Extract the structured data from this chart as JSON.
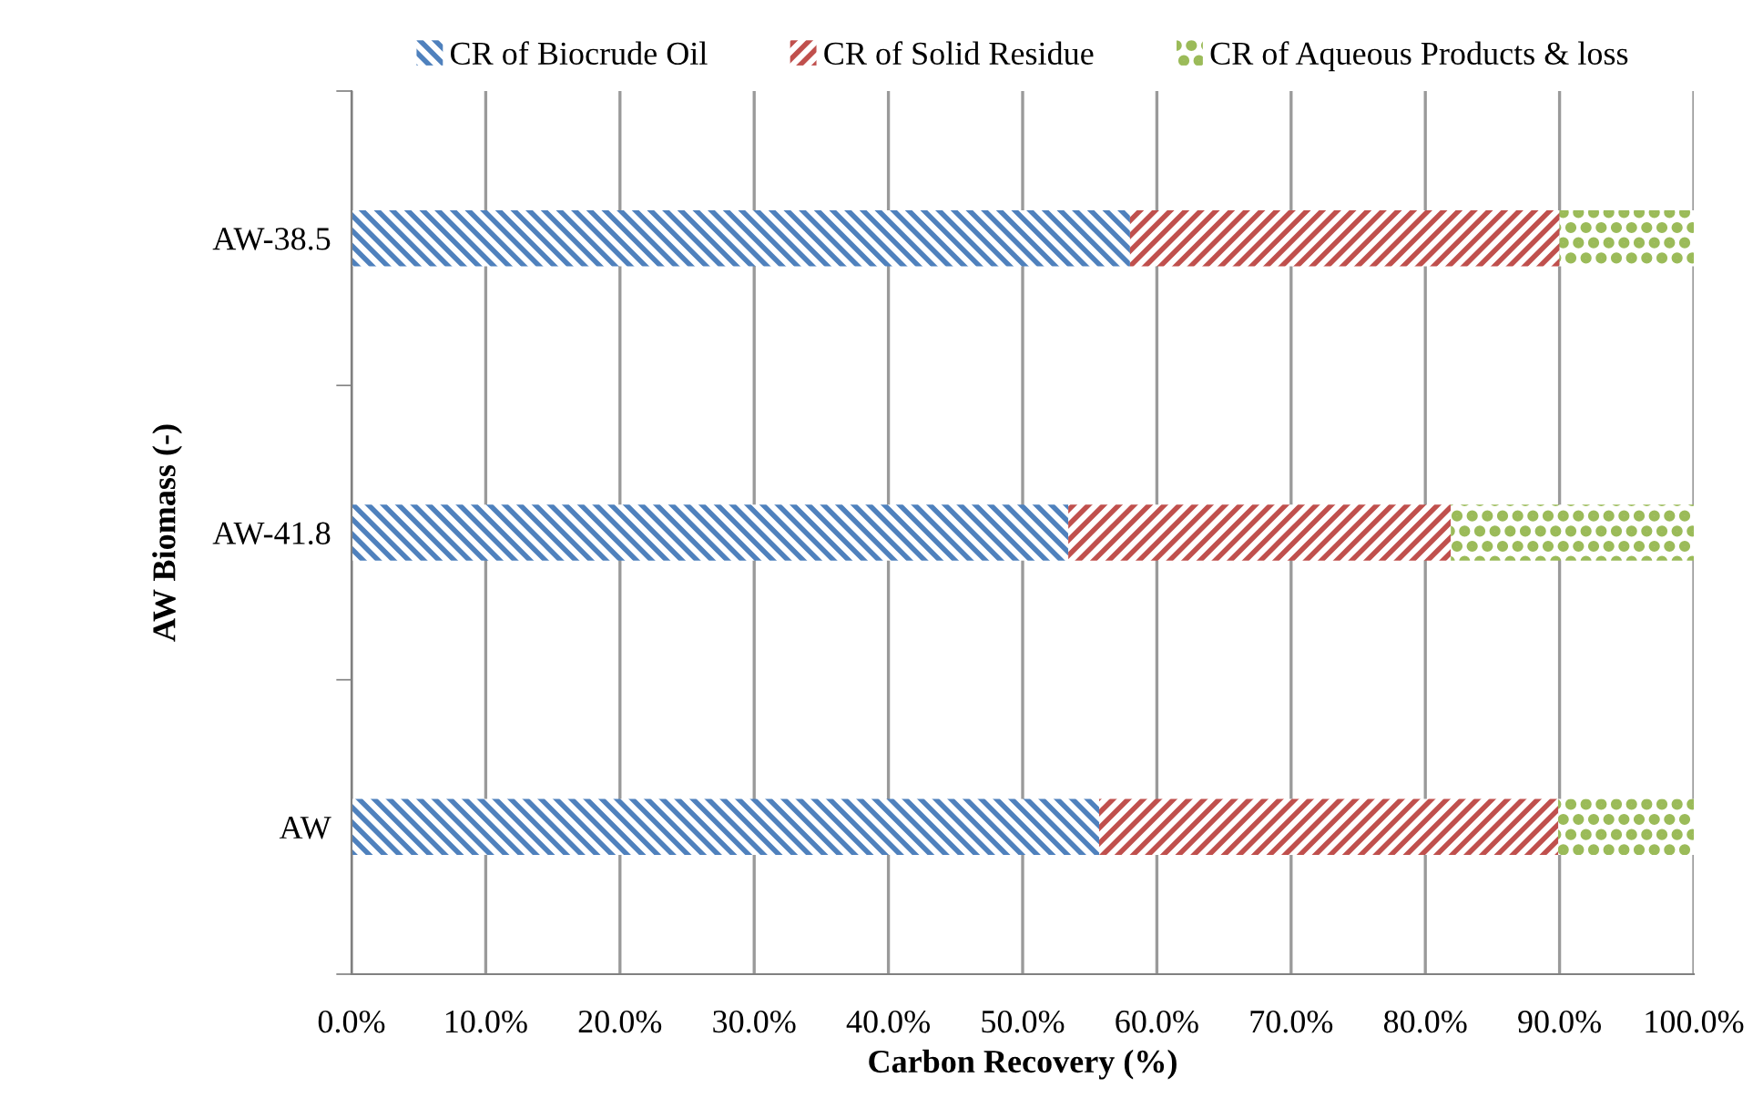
{
  "chart_data": {
    "type": "bar",
    "orientation": "horizontal",
    "stacked": true,
    "xlabel": "Carbon Recovery (%)",
    "ylabel": "AW Biomass (-)",
    "categories": [
      "AW-38.5",
      "AW-41.8",
      "AW"
    ],
    "series": [
      {
        "name": "CR of Biocrude Oil",
        "color": "#4f81bd",
        "values": [
          58,
          53.4,
          55.7
        ]
      },
      {
        "name": "CR of Solid Residue",
        "color": "#c0504d",
        "values": [
          32,
          28.5,
          34.2
        ]
      },
      {
        "name": "CR of Aqueous Products & loss",
        "color": "#9bbb59",
        "values": [
          10,
          18.1,
          10.1
        ]
      }
    ],
    "xlim": [
      0,
      100
    ],
    "xticks": [
      {
        "value": 0,
        "label": "0.0%"
      },
      {
        "value": 10,
        "label": "10.0%"
      },
      {
        "value": 20,
        "label": "20.0%"
      },
      {
        "value": 30,
        "label": "30.0%"
      },
      {
        "value": 40,
        "label": "40.0%"
      },
      {
        "value": 50,
        "label": "50.0%"
      },
      {
        "value": 60,
        "label": "60.0%"
      },
      {
        "value": 70,
        "label": "70.0%"
      },
      {
        "value": 80,
        "label": "80.0%"
      },
      {
        "value": 90,
        "label": "90.0%"
      },
      {
        "value": 100,
        "label": "100.0%"
      }
    ],
    "grid": "x",
    "legend": "top"
  }
}
